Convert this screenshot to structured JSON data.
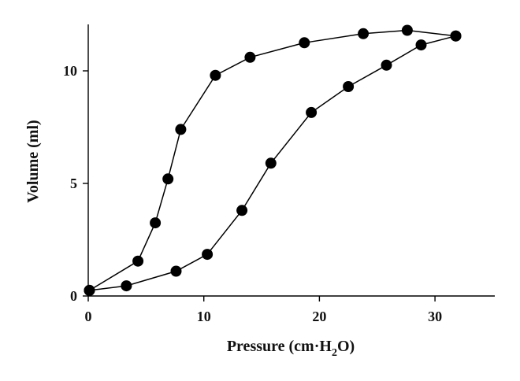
{
  "chart_data": {
    "type": "line",
    "xlabel": "Pressure (cm·H2O)",
    "xlabel_parts": {
      "prefix": "Pressure (cm·H",
      "sub": "2",
      "suffix": "O)"
    },
    "ylabel": "Volume (ml)",
    "xlim": [
      0,
      35
    ],
    "ylim": [
      0,
      12
    ],
    "xticks": [
      0,
      10,
      20,
      30
    ],
    "yticks": [
      0,
      5,
      10
    ],
    "grid": false,
    "series": [
      {
        "x": [
          0.1,
          4.3,
          5.8,
          6.9,
          8.0,
          11.0,
          14.0,
          18.7,
          23.8,
          27.6,
          31.8
        ],
        "y": [
          0.25,
          1.55,
          3.25,
          5.2,
          7.4,
          9.8,
          10.6,
          11.25,
          11.65,
          11.8,
          11.55
        ]
      },
      {
        "x": [
          0.1,
          3.3,
          7.6,
          10.3,
          13.3,
          15.8,
          19.3,
          22.5,
          25.8,
          28.8,
          31.8
        ],
        "y": [
          0.25,
          0.45,
          1.1,
          1.85,
          3.8,
          5.9,
          8.15,
          9.3,
          10.25,
          11.15,
          11.55
        ]
      }
    ]
  }
}
